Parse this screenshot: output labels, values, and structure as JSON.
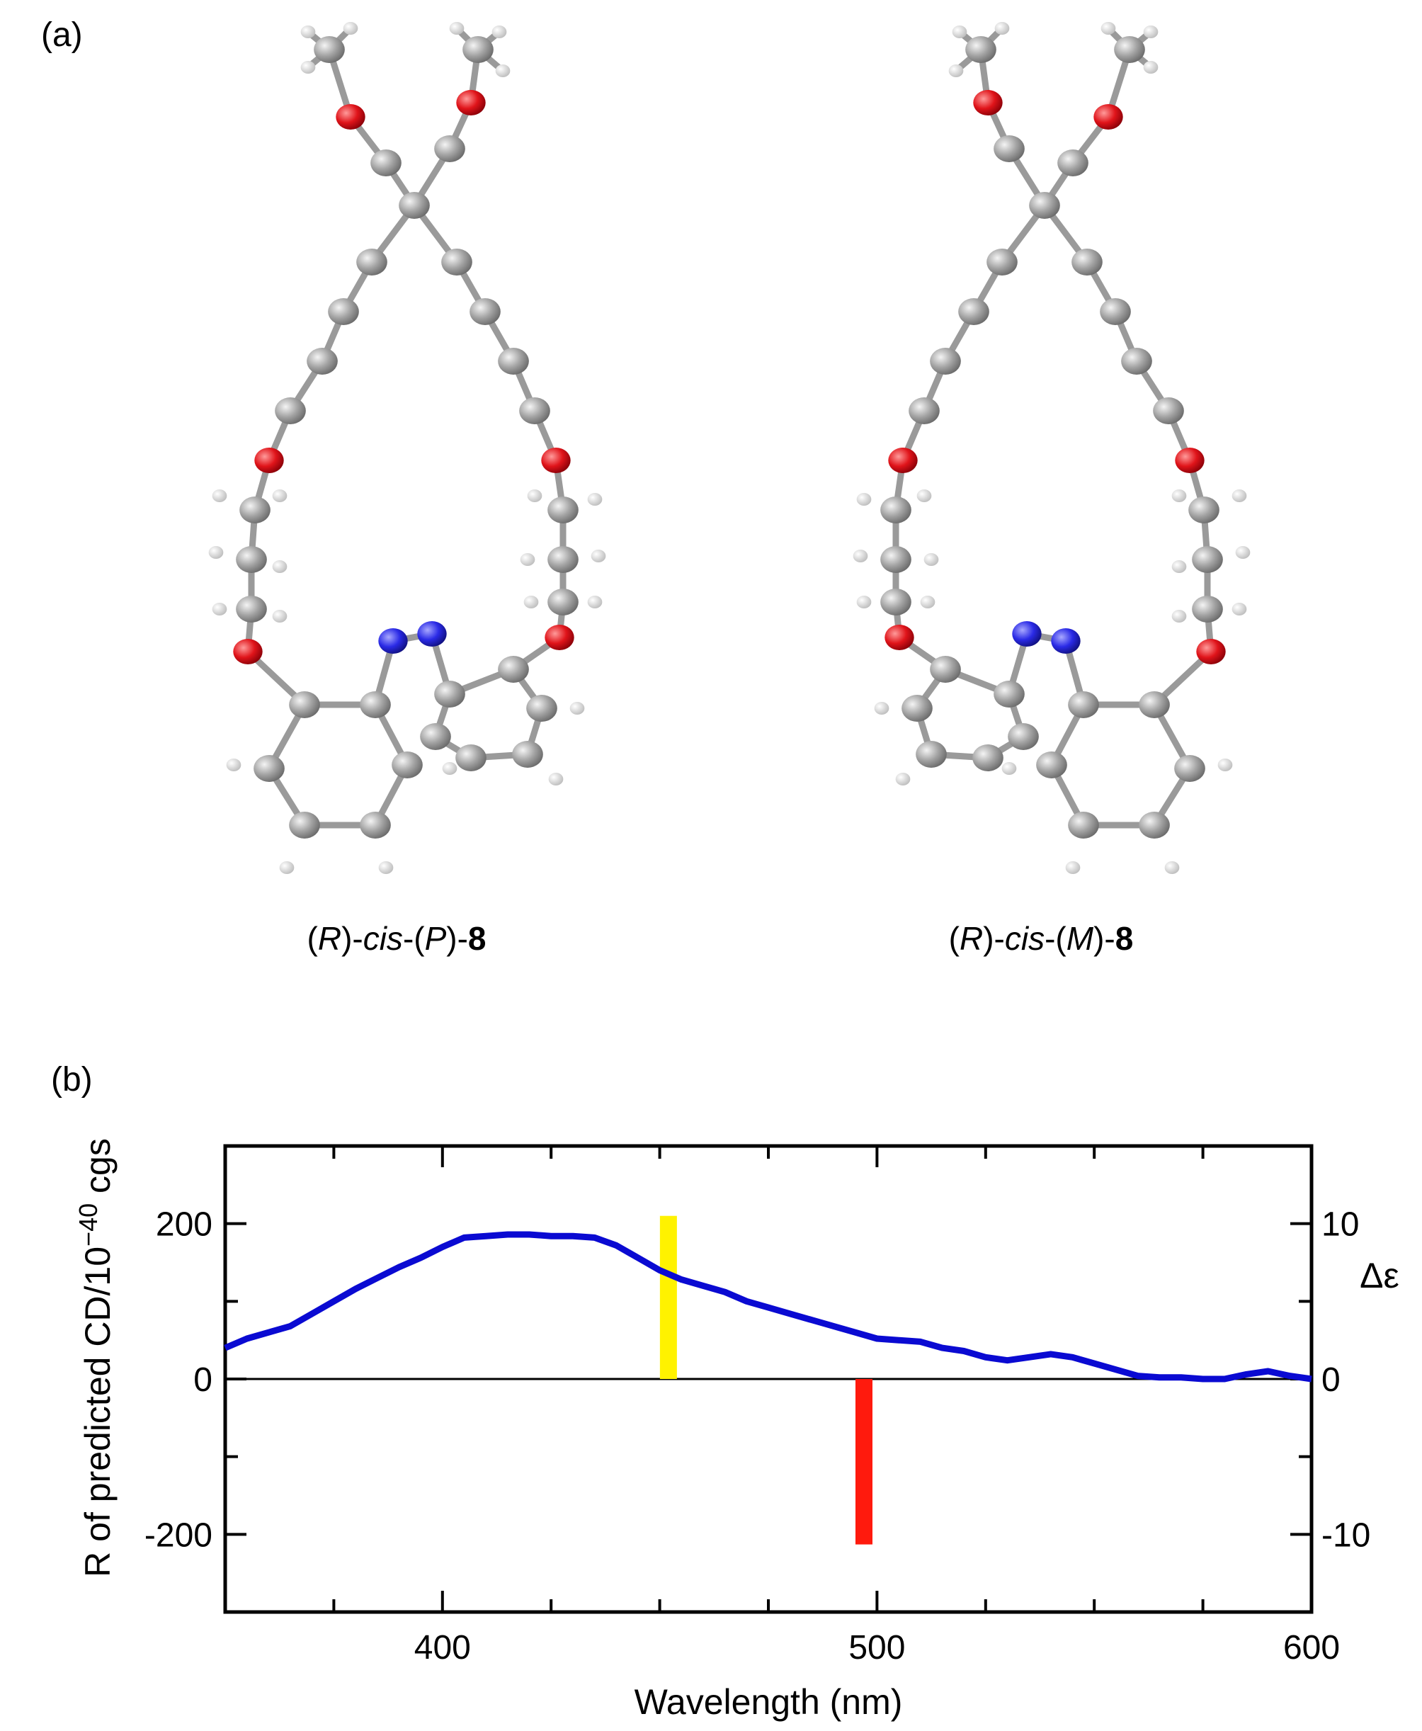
{
  "panels": {
    "a_label": "(a)",
    "b_label": "(b)"
  },
  "molecules": [
    {
      "id": "left",
      "prefix_paren_open": "(",
      "config": "R",
      "prefix_paren_close": ")-",
      "cis": "cis",
      "mid_open": "-(",
      "helix": "P",
      "mid_close": ")-",
      "number": "8"
    },
    {
      "id": "right",
      "prefix_paren_open": "(",
      "config": "R",
      "prefix_paren_close": ")-",
      "cis": "cis",
      "mid_open": "-(",
      "helix": "M",
      "mid_close": ")-",
      "number": "8"
    }
  ],
  "colors": {
    "carbon": "#9a9a9a",
    "oxygen": "#e0141a",
    "nitrogen": "#2a2ae6",
    "hydrogen": "#e8e8e8",
    "curve": "#0a0ad2",
    "bar_positive": "#fff200",
    "bar_negative": "#ff1a0d"
  },
  "chart_data": {
    "type": "line",
    "xlabel": "Wavelength (nm)",
    "ylabel_left": "R of predicted CD/10",
    "ylabel_left_exp": "−40",
    "ylabel_left_unit": " cgs",
    "ylabel_right": "Δε",
    "xlim": [
      350,
      600
    ],
    "ylim_left": [
      -300,
      300
    ],
    "ylim_right": [
      -15,
      15
    ],
    "x_ticks": [
      400,
      500,
      600
    ],
    "y_left_ticks": [
      200,
      0,
      -200
    ],
    "y_left_tick_labels": [
      "200",
      "0",
      "-200"
    ],
    "y_right_ticks": [
      10,
      0,
      -10
    ],
    "y_right_tick_labels": [
      "10",
      "0",
      "-10"
    ],
    "series": [
      {
        "axis": "right",
        "x": [
          350,
          355,
          360,
          365,
          370,
          375,
          380,
          385,
          390,
          395,
          400,
          405,
          410,
          415,
          420,
          425,
          430,
          435,
          440,
          445,
          450,
          455,
          460,
          465,
          470,
          475,
          480,
          485,
          490,
          495,
          500,
          505,
          510,
          515,
          520,
          525,
          530,
          535,
          540,
          545,
          550,
          555,
          560,
          565,
          570,
          575,
          580,
          585,
          590,
          595,
          600
        ],
        "y": [
          2.0,
          2.6,
          3.0,
          3.4,
          4.2,
          5.0,
          5.8,
          6.5,
          7.2,
          7.8,
          8.5,
          9.1,
          9.2,
          9.3,
          9.3,
          9.2,
          9.2,
          9.1,
          8.6,
          7.8,
          7.0,
          6.4,
          6.0,
          5.6,
          5.0,
          4.6,
          4.2,
          3.8,
          3.4,
          3.0,
          2.6,
          2.5,
          2.4,
          2.0,
          1.8,
          1.4,
          1.2,
          1.4,
          1.6,
          1.4,
          1.0,
          0.6,
          0.2,
          0.1,
          0.1,
          0.0,
          0.0,
          0.3,
          0.5,
          0.2,
          0.0
        ]
      }
    ],
    "bars": [
      {
        "axis": "left",
        "x": 452,
        "value": 210,
        "color": "#fff200"
      },
      {
        "axis": "left",
        "x": 497,
        "value": -213,
        "color": "#ff1a0d"
      }
    ]
  }
}
